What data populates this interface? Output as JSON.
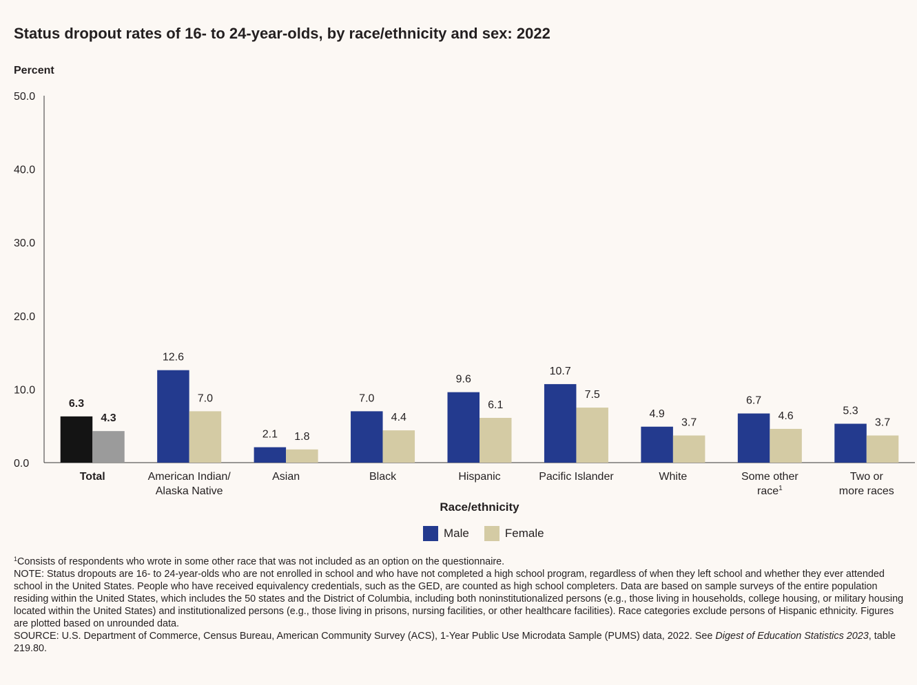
{
  "title": "Status dropout rates of 16- to 24-year-olds, by race/ethnicity and sex: 2022",
  "colors": {
    "male": "#233a8e",
    "female": "#d4cba4",
    "total_male": "#141414",
    "total_female": "#9b9b9b",
    "axis": "#333333"
  },
  "chart_data": {
    "type": "bar",
    "title": "Status dropout rates of 16- to 24-year-olds, by race/ethnicity and sex: 2022",
    "ylabel": "Percent",
    "xlabel": "Race/ethnicity",
    "ylim": [
      0,
      50
    ],
    "yticks": [
      "0.0",
      "10.0",
      "20.0",
      "30.0",
      "40.0",
      "50.0"
    ],
    "grid": false,
    "legend_position": "bottom-center",
    "categories": [
      {
        "lines": [
          "Total"
        ],
        "bold": true
      },
      {
        "lines": [
          "American Indian/",
          "Alaska Native"
        ]
      },
      {
        "lines": [
          "Asian"
        ]
      },
      {
        "lines": [
          "Black"
        ]
      },
      {
        "lines": [
          "Hispanic"
        ]
      },
      {
        "lines": [
          "Pacific Islander"
        ]
      },
      {
        "lines": [
          "White"
        ]
      },
      {
        "lines": [
          "Some other",
          "race"
        ],
        "sup": "1"
      },
      {
        "lines": [
          "Two or",
          "more races"
        ]
      }
    ],
    "series": [
      {
        "name": "Male",
        "values": [
          6.3,
          12.6,
          2.1,
          7.0,
          9.6,
          10.7,
          4.9,
          6.7,
          5.3
        ],
        "labels": [
          "6.3",
          "12.6",
          "2.1",
          "7.0",
          "9.6",
          "10.7",
          "4.9",
          "6.7",
          "5.3"
        ]
      },
      {
        "name": "Female",
        "values": [
          4.3,
          7.0,
          1.8,
          4.4,
          6.1,
          7.5,
          3.7,
          4.6,
          3.7
        ],
        "labels": [
          "4.3",
          "7.0",
          "1.8",
          "4.4",
          "6.1",
          "7.5",
          "3.7",
          "4.6",
          "3.7"
        ]
      }
    ]
  },
  "legend": {
    "male_label": "Male",
    "female_label": "Female"
  },
  "notes": {
    "footnote_marker": "1",
    "footnote": "Consists of respondents who wrote in some other race that was not included as an option on the questionnaire.",
    "note": "NOTE: Status dropouts are 16- to 24-year-olds who are not enrolled in school and who have not completed a high school program, regardless of when they left school and whether they ever attended school in the United States. People who have received equivalency credentials, such as the GED, are counted as high school completers. Data are based on sample surveys of the entire population residing within the United States, which includes the 50 states and the District of Columbia, including both noninstitutionalized persons (e.g., those living in households, college housing, or military housing located within the United States) and institutionalized persons (e.g., those living in prisons, nursing facilities, or other healthcare facilities). Race categories exclude persons of Hispanic ethnicity. Figures are plotted based on unrounded data.",
    "source_prefix": "SOURCE: U.S. Department of Commerce, Census Bureau, American Community Survey (ACS), 1-Year Public Use Microdata Sample (PUMS) data, 2022. See ",
    "source_italic": "Digest of Education Statistics 2023",
    "source_suffix": ", table 219.80."
  }
}
